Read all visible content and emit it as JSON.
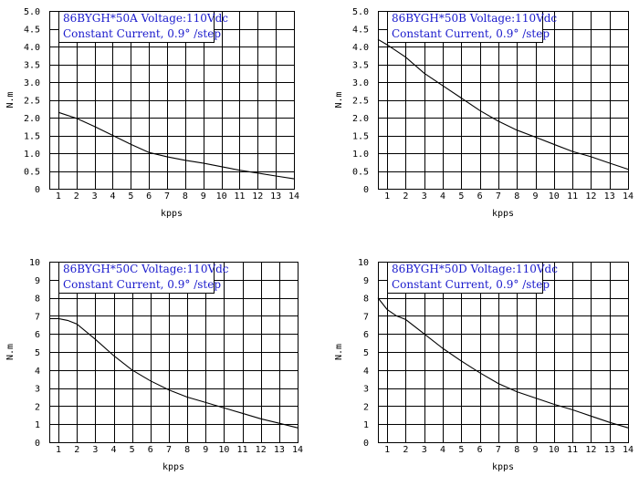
{
  "legend_color": "#1a1acc",
  "chart_data": [
    {
      "type": "line",
      "legend_line1": "86BYGH*50A  Voltage:110Vdc",
      "legend_line2": "Constant Current, 0.9° /step",
      "xlabel": "kpps",
      "ylabel": "N.m",
      "xlim": [
        0.5,
        14
      ],
      "ylim": [
        0,
        5
      ],
      "xticks": [
        "1",
        "2",
        "3",
        "4",
        "5",
        "6",
        "7",
        "8",
        "9",
        "10",
        "11",
        "12",
        "13",
        "14"
      ],
      "yticks": [
        "0",
        "0.5",
        "1.0",
        "1.5",
        "2.0",
        "2.5",
        "3.0",
        "3.5",
        "4.0",
        "4.5",
        "5.0"
      ],
      "grid": true,
      "series": [
        {
          "x": [
            1,
            2,
            3,
            4,
            5,
            6,
            7,
            8,
            9,
            10,
            11,
            12,
            13,
            14
          ],
          "y": [
            2.15,
            1.98,
            1.75,
            1.5,
            1.25,
            1.02,
            0.9,
            0.8,
            0.72,
            0.62,
            0.52,
            0.44,
            0.36,
            0.28
          ]
        }
      ]
    },
    {
      "type": "line",
      "legend_line1": "86BYGH*50B  Voltage:110Vdc",
      "legend_line2": "Constant Current, 0.9° /step",
      "xlabel": "kpps",
      "ylabel": "N.m",
      "xlim": [
        0.5,
        14
      ],
      "ylim": [
        0,
        5
      ],
      "xticks": [
        "1",
        "2",
        "3",
        "4",
        "5",
        "6",
        "7",
        "8",
        "9",
        "10",
        "11",
        "12",
        "13",
        "14"
      ],
      "yticks": [
        "0",
        "0.5",
        "1.0",
        "1.5",
        "2.0",
        "2.5",
        "3.0",
        "3.5",
        "4.0",
        "4.5",
        "5.0"
      ],
      "grid": true,
      "series": [
        {
          "x": [
            0.5,
            1,
            2,
            3,
            4,
            5,
            6,
            7,
            8,
            9,
            10,
            11,
            12,
            13,
            14
          ],
          "y": [
            4.2,
            4.05,
            3.7,
            3.25,
            2.9,
            2.55,
            2.2,
            1.9,
            1.65,
            1.45,
            1.25,
            1.05,
            0.9,
            0.72,
            0.55
          ]
        }
      ]
    },
    {
      "type": "line",
      "legend_line1": "86BYGH*50C  Voltage:110Vdc",
      "legend_line2": "Constant Current, 0.9° /step",
      "xlabel": "kpps",
      "ylabel": "N.m",
      "xlim": [
        0.5,
        14
      ],
      "ylim": [
        0,
        10
      ],
      "xticks": [
        "1",
        "2",
        "3",
        "4",
        "5",
        "6",
        "7",
        "8",
        "9",
        "10",
        "11",
        "12",
        "13",
        "14"
      ],
      "yticks": [
        "0",
        "1",
        "2",
        "3",
        "4",
        "5",
        "6",
        "7",
        "8",
        "9",
        "10"
      ],
      "grid": true,
      "series": [
        {
          "x": [
            0.5,
            1,
            1.5,
            2,
            3,
            4,
            5,
            6,
            7,
            8,
            9,
            10,
            11,
            12,
            13,
            14
          ],
          "y": [
            6.85,
            6.85,
            6.75,
            6.55,
            5.7,
            4.8,
            4.0,
            3.4,
            2.9,
            2.5,
            2.2,
            1.9,
            1.6,
            1.3,
            1.05,
            0.8
          ]
        }
      ]
    },
    {
      "type": "line",
      "legend_line1": "86BYGH*50D  Voltage:110Vdc",
      "legend_line2": "Constant Current, 0.9° /step",
      "xlabel": "kpps",
      "ylabel": "N.m",
      "xlim": [
        0.5,
        14
      ],
      "ylim": [
        0,
        10
      ],
      "xticks": [
        "1",
        "2",
        "3",
        "4",
        "5",
        "6",
        "7",
        "8",
        "9",
        "10",
        "11",
        "12",
        "13",
        "14"
      ],
      "yticks": [
        "0",
        "1",
        "2",
        "3",
        "4",
        "5",
        "6",
        "7",
        "8",
        "9",
        "10"
      ],
      "grid": true,
      "series": [
        {
          "x": [
            0.5,
            1,
            1.5,
            2,
            3,
            4,
            5,
            6,
            7,
            8,
            9,
            10,
            11,
            12,
            13,
            14
          ],
          "y": [
            8.0,
            7.35,
            7.0,
            6.8,
            6.0,
            5.2,
            4.5,
            3.85,
            3.25,
            2.8,
            2.45,
            2.1,
            1.8,
            1.45,
            1.1,
            0.8
          ]
        }
      ]
    }
  ]
}
